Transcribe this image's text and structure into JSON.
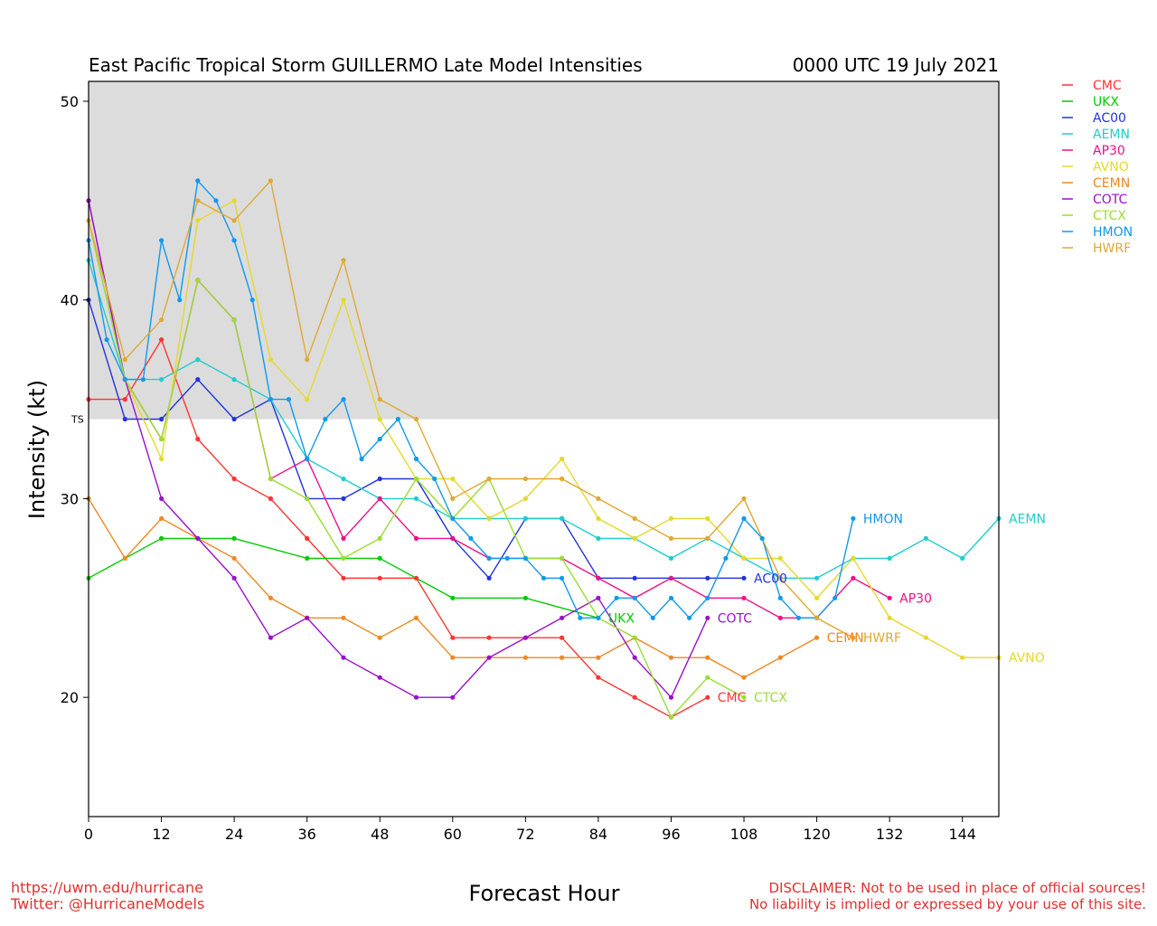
{
  "chart_data": {
    "type": "line",
    "title": "East Pacific Tropical Storm GUILLERMO Late Model Intensities",
    "datetime": "0000 UTC 19 July 2021",
    "xlabel": "Forecast Hour",
    "ylabel": "Intensity (kt)",
    "xlim": [
      0,
      150
    ],
    "ylim": [
      14,
      51
    ],
    "xticks": [
      0,
      12,
      24,
      36,
      48,
      60,
      72,
      84,
      96,
      108,
      120,
      132,
      144
    ],
    "yticks": [
      20,
      30,
      40,
      50
    ],
    "threshold": {
      "label": "TS",
      "value": 34
    },
    "legend_position": "top-right outside",
    "series": [
      {
        "name": "CMC",
        "color": "#ff3333",
        "points": [
          [
            0,
            35
          ],
          [
            6,
            35
          ],
          [
            12,
            38
          ],
          [
            18,
            33
          ],
          [
            24,
            31
          ],
          [
            30,
            30
          ],
          [
            36,
            28
          ],
          [
            42,
            26
          ],
          [
            48,
            26
          ],
          [
            54,
            26
          ],
          [
            60,
            23
          ],
          [
            66,
            23
          ],
          [
            72,
            23
          ],
          [
            78,
            23
          ],
          [
            84,
            21
          ],
          [
            90,
            20
          ],
          [
            96,
            19
          ],
          [
            102,
            20
          ]
        ]
      },
      {
        "name": "UKX",
        "color": "#00cc00",
        "points": [
          [
            0,
            26
          ],
          [
            12,
            28
          ],
          [
            24,
            28
          ],
          [
            36,
            27
          ],
          [
            48,
            27
          ],
          [
            60,
            25
          ],
          [
            72,
            25
          ],
          [
            84,
            24
          ]
        ]
      },
      {
        "name": "AC00",
        "color": "#2233dd",
        "points": [
          [
            0,
            40
          ],
          [
            6,
            34
          ],
          [
            12,
            34
          ],
          [
            18,
            36
          ],
          [
            24,
            34
          ],
          [
            30,
            35
          ],
          [
            36,
            30
          ],
          [
            42,
            30
          ],
          [
            48,
            31
          ],
          [
            54,
            31
          ],
          [
            60,
            28
          ],
          [
            66,
            26
          ],
          [
            72,
            29
          ],
          [
            78,
            29
          ],
          [
            84,
            26
          ],
          [
            90,
            26
          ],
          [
            96,
            26
          ],
          [
            102,
            26
          ],
          [
            108,
            26
          ]
        ]
      },
      {
        "name": "AEMN",
        "color": "#22cccc",
        "points": [
          [
            0,
            42
          ],
          [
            6,
            36
          ],
          [
            12,
            36
          ],
          [
            18,
            37
          ],
          [
            24,
            36
          ],
          [
            30,
            35
          ],
          [
            36,
            32
          ],
          [
            42,
            31
          ],
          [
            48,
            30
          ],
          [
            54,
            30
          ],
          [
            60,
            29
          ],
          [
            66,
            29
          ],
          [
            72,
            29
          ],
          [
            78,
            29
          ],
          [
            84,
            28
          ],
          [
            90,
            28
          ],
          [
            96,
            27
          ],
          [
            102,
            28
          ],
          [
            108,
            27
          ],
          [
            114,
            26
          ],
          [
            120,
            26
          ],
          [
            126,
            27
          ],
          [
            132,
            27
          ],
          [
            138,
            28
          ],
          [
            144,
            27
          ],
          [
            150,
            29
          ]
        ]
      },
      {
        "name": "AP30",
        "color": "#ee1188",
        "points": [
          [
            0,
            45
          ],
          [
            6,
            36
          ],
          [
            12,
            33
          ],
          [
            18,
            41
          ],
          [
            24,
            39
          ],
          [
            30,
            31
          ],
          [
            36,
            32
          ],
          [
            42,
            28
          ],
          [
            48,
            30
          ],
          [
            54,
            28
          ],
          [
            60,
            28
          ],
          [
            66,
            27
          ],
          [
            72,
            27
          ],
          [
            78,
            27
          ],
          [
            84,
            26
          ],
          [
            90,
            25
          ],
          [
            96,
            26
          ],
          [
            102,
            25
          ],
          [
            108,
            25
          ],
          [
            114,
            24
          ],
          [
            120,
            24
          ],
          [
            126,
            26
          ],
          [
            132,
            25
          ]
        ]
      },
      {
        "name": "AVNO",
        "color": "#e6d82c",
        "points": [
          [
            0,
            44
          ],
          [
            6,
            36
          ],
          [
            12,
            32
          ],
          [
            18,
            44
          ],
          [
            24,
            45
          ],
          [
            30,
            37
          ],
          [
            36,
            35
          ],
          [
            42,
            40
          ],
          [
            48,
            34
          ],
          [
            54,
            31
          ],
          [
            60,
            31
          ],
          [
            66,
            29
          ],
          [
            72,
            30
          ],
          [
            78,
            32
          ],
          [
            84,
            29
          ],
          [
            90,
            28
          ],
          [
            96,
            29
          ],
          [
            102,
            29
          ],
          [
            108,
            27
          ],
          [
            114,
            27
          ],
          [
            120,
            25
          ],
          [
            126,
            27
          ],
          [
            132,
            24
          ],
          [
            138,
            23
          ],
          [
            144,
            22
          ],
          [
            150,
            22
          ]
        ]
      },
      {
        "name": "CEMN",
        "color": "#ee8822",
        "points": [
          [
            0,
            30
          ],
          [
            6,
            27
          ],
          [
            12,
            29
          ],
          [
            18,
            28
          ],
          [
            24,
            27
          ],
          [
            30,
            25
          ],
          [
            36,
            24
          ],
          [
            42,
            24
          ],
          [
            48,
            23
          ],
          [
            54,
            24
          ],
          [
            60,
            22
          ],
          [
            66,
            22
          ],
          [
            72,
            22
          ],
          [
            78,
            22
          ],
          [
            84,
            22
          ],
          [
            90,
            23
          ],
          [
            96,
            22
          ],
          [
            102,
            22
          ],
          [
            108,
            21
          ],
          [
            114,
            22
          ],
          [
            120,
            23
          ]
        ]
      },
      {
        "name": "COTC",
        "color": "#9911cc",
        "points": [
          [
            0,
            45
          ],
          [
            6,
            36
          ],
          [
            12,
            30
          ],
          [
            18,
            28
          ],
          [
            24,
            26
          ],
          [
            30,
            23
          ],
          [
            36,
            24
          ],
          [
            42,
            22
          ],
          [
            48,
            21
          ],
          [
            54,
            20
          ],
          [
            60,
            20
          ],
          [
            66,
            22
          ],
          [
            72,
            23
          ],
          [
            78,
            24
          ],
          [
            84,
            25
          ],
          [
            90,
            22
          ],
          [
            96,
            20
          ],
          [
            102,
            24
          ]
        ]
      },
      {
        "name": "CTCX",
        "color": "#99dd33",
        "points": [
          [
            0,
            44
          ],
          [
            6,
            36
          ],
          [
            12,
            33
          ],
          [
            18,
            41
          ],
          [
            24,
            39
          ],
          [
            30,
            31
          ],
          [
            36,
            30
          ],
          [
            42,
            27
          ],
          [
            48,
            28
          ],
          [
            54,
            31
          ],
          [
            60,
            29
          ],
          [
            66,
            31
          ],
          [
            72,
            27
          ],
          [
            78,
            27
          ],
          [
            84,
            24
          ],
          [
            90,
            23
          ],
          [
            96,
            19
          ],
          [
            102,
            21
          ],
          [
            108,
            20
          ]
        ]
      },
      {
        "name": "HMON",
        "color": "#1199ee",
        "points": [
          [
            0,
            43
          ],
          [
            3,
            38
          ],
          [
            6,
            36
          ],
          [
            9,
            36
          ],
          [
            12,
            43
          ],
          [
            15,
            40
          ],
          [
            18,
            46
          ],
          [
            21,
            45
          ],
          [
            24,
            43
          ],
          [
            27,
            40
          ],
          [
            30,
            35
          ],
          [
            33,
            35
          ],
          [
            36,
            32
          ],
          [
            39,
            34
          ],
          [
            42,
            35
          ],
          [
            45,
            32
          ],
          [
            48,
            33
          ],
          [
            51,
            34
          ],
          [
            54,
            32
          ],
          [
            57,
            31
          ],
          [
            60,
            29
          ],
          [
            63,
            28
          ],
          [
            66,
            27
          ],
          [
            69,
            27
          ],
          [
            72,
            27
          ],
          [
            75,
            26
          ],
          [
            78,
            26
          ],
          [
            81,
            24
          ],
          [
            84,
            24
          ],
          [
            87,
            25
          ],
          [
            90,
            25
          ],
          [
            93,
            24
          ],
          [
            96,
            25
          ],
          [
            99,
            24
          ],
          [
            102,
            25
          ],
          [
            105,
            27
          ],
          [
            108,
            29
          ],
          [
            111,
            28
          ],
          [
            114,
            25
          ],
          [
            117,
            24
          ],
          [
            120,
            24
          ],
          [
            123,
            25
          ],
          [
            126,
            29
          ]
        ]
      },
      {
        "name": "HWRF",
        "color": "#e0a833",
        "points": [
          [
            0,
            44
          ],
          [
            6,
            37
          ],
          [
            12,
            39
          ],
          [
            18,
            45
          ],
          [
            24,
            44
          ],
          [
            30,
            46
          ],
          [
            36,
            37
          ],
          [
            42,
            42
          ],
          [
            48,
            35
          ],
          [
            54,
            34
          ],
          [
            60,
            30
          ],
          [
            66,
            31
          ],
          [
            72,
            31
          ],
          [
            78,
            31
          ],
          [
            84,
            30
          ],
          [
            90,
            29
          ],
          [
            96,
            28
          ],
          [
            102,
            28
          ],
          [
            108,
            30
          ],
          [
            114,
            26
          ],
          [
            120,
            24
          ],
          [
            126,
            23
          ]
        ]
      }
    ],
    "end_labels": [
      {
        "name": "HMON",
        "hour": 126,
        "value": 29
      },
      {
        "name": "AEMN",
        "hour": 150,
        "value": 29
      },
      {
        "name": "AC00",
        "hour": 108,
        "value": 26
      },
      {
        "name": "AP30",
        "hour": 132,
        "value": 25
      },
      {
        "name": "UKX",
        "hour": 84,
        "value": 24
      },
      {
        "name": "COTC",
        "hour": 102,
        "value": 24
      },
      {
        "name": "CEMN",
        "hour": 120,
        "value": 23
      },
      {
        "name": "HWRF",
        "hour": 126,
        "value": 23
      },
      {
        "name": "AVNO",
        "hour": 150,
        "value": 22
      },
      {
        "name": "CMC",
        "hour": 102,
        "value": 20
      },
      {
        "name": "CTCX",
        "hour": 108,
        "value": 20
      }
    ]
  },
  "footer": {
    "left_line1": "https://uwm.edu/hurricane",
    "left_line2": "Twitter: @HurricaneModels",
    "right_line1": "DISCLAIMER: Not to be used in place of official sources!",
    "right_line2": "No liability is implied or expressed by your use of this site."
  },
  "colors": {
    "shade": "#dcdcdc",
    "footer_text": "#e03030"
  }
}
